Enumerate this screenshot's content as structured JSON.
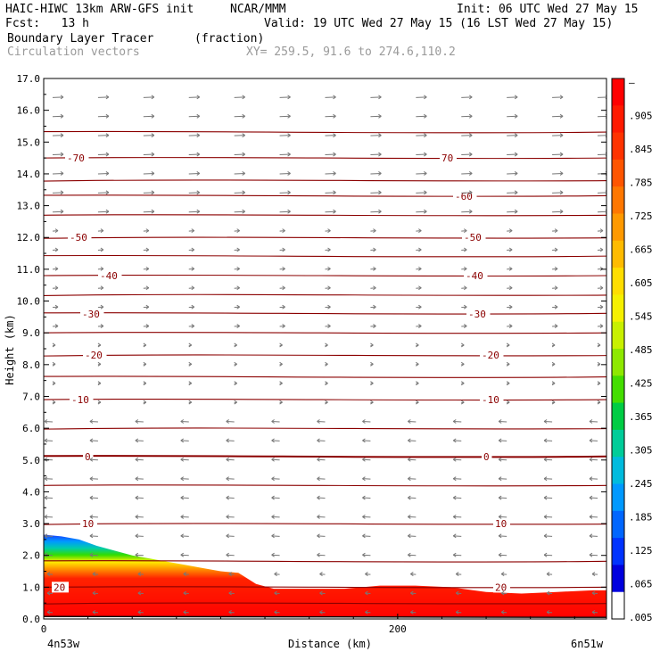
{
  "header": {
    "model": "HAIC-HIWC 13km ARW-GFS init",
    "org": "NCAR/MMM",
    "init": "Init: 06 UTC Wed 27 May 15",
    "fcst": "Fcst:   13 h",
    "valid": "Valid: 19 UTC Wed 27 May 15 (16 LST Wed 27 May 15)",
    "field": "Boundary Layer Tracer",
    "units": "(fraction)",
    "vectors": "Circulation vectors",
    "xy": "XY= 259.5, 91.6 to 274.6,110.2"
  },
  "chart_data": {
    "type": "cross-section",
    "xlabel": "Distance (km)",
    "ylabel": "Height (km)",
    "x_ticks": [
      0,
      200
    ],
    "x_tick_labels": [
      "0",
      "200"
    ],
    "x_range": [
      0,
      318
    ],
    "y_ticks": [
      0,
      1,
      2,
      3,
      4,
      5,
      6,
      7,
      8,
      9,
      10,
      11,
      12,
      13,
      14,
      15,
      16,
      17
    ],
    "y_tick_labels": [
      "0.0",
      "1.0",
      "2.0",
      "3.0",
      "4.0",
      "5.0",
      "6.0",
      "7.0",
      "8.0",
      "9.0",
      "10.0",
      "11.0",
      "12.0",
      "13.0",
      "14.0",
      "15.0",
      "16.0",
      "17.0"
    ],
    "y_range": [
      0,
      17
    ],
    "left_endpoint": "4n53w",
    "right_endpoint": "6n51w",
    "colorbar": {
      "labels": [
        "–",
        ".905",
        ".845",
        ".785",
        ".725",
        ".665",
        ".605",
        ".545",
        ".485",
        ".425",
        ".365",
        ".305",
        ".245",
        ".185",
        ".125",
        ".065",
        ".005"
      ],
      "colors": [
        "#ff0000",
        "#ff1a00",
        "#ff3300",
        "#ff5500",
        "#ff7700",
        "#ff9900",
        "#ffbb00",
        "#ffdd00",
        "#f5f000",
        "#c8f000",
        "#8ee800",
        "#44dd00",
        "#00cc44",
        "#00cc99",
        "#00bbdd",
        "#0099ff",
        "#0066ff",
        "#0033ff",
        "#0000dd",
        "#ffffff"
      ]
    },
    "isotherms": [
      {
        "label": "-70",
        "y": 14.5
      },
      {
        "label": "70",
        "y": 14.5
      },
      {
        "label": "-60",
        "y": 13.3
      },
      {
        "label": "-50",
        "y": 12.0
      },
      {
        "label": "-40",
        "y": 10.8
      },
      {
        "label": "-30",
        "y": 9.6
      },
      {
        "label": "-20",
        "y": 8.3
      },
      {
        "label": "-10",
        "y": 6.9
      },
      {
        "label": "0",
        "y": 5.1
      },
      {
        "label": "10",
        "y": 3.0
      },
      {
        "label": "20",
        "y": 1.0
      }
    ],
    "pbl_top_profile": {
      "x": [
        0,
        10,
        20,
        30,
        40,
        50,
        60,
        70,
        80,
        90,
        100,
        110,
        120,
        130,
        150,
        170,
        190,
        210,
        230,
        250,
        270,
        290,
        310,
        318
      ],
      "y": [
        2.65,
        2.6,
        2.5,
        2.3,
        2.15,
        2.0,
        1.9,
        1.8,
        1.7,
        1.6,
        1.5,
        1.45,
        1.1,
        0.95,
        0.95,
        0.95,
        1.05,
        1.05,
        1.0,
        0.85,
        0.8,
        0.85,
        0.9,
        0.9
      ]
    }
  }
}
